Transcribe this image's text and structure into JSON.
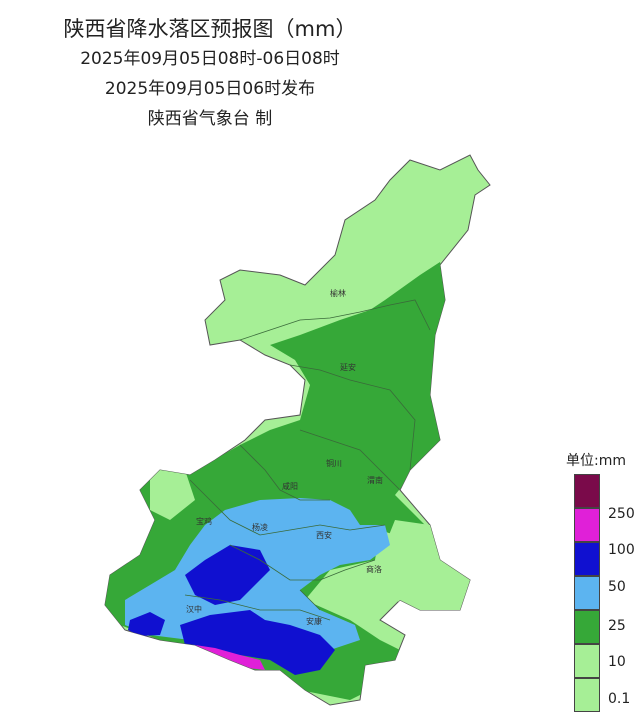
{
  "title": "陕西省降水落区预报图（mm）",
  "period": "2025年09月05日08时-06日08时",
  "issued": "2025年09月05日06时发布",
  "agency": "陕西省气象台 制",
  "cities": [
    {
      "name": "榆林",
      "id": "yulin"
    },
    {
      "name": "延安",
      "id": "yanan"
    },
    {
      "name": "铜川",
      "id": "tongchuan"
    },
    {
      "name": "渭南",
      "id": "weinan"
    },
    {
      "name": "咸阳",
      "id": "xianyang"
    },
    {
      "name": "宝鸡",
      "id": "baoji"
    },
    {
      "name": "杨凌",
      "id": "yangling"
    },
    {
      "name": "西安",
      "id": "xian"
    },
    {
      "name": "商洛",
      "id": "shangluo"
    },
    {
      "name": "汉中",
      "id": "hanzhong"
    },
    {
      "name": "安康",
      "id": "ankang"
    }
  ],
  "legend": {
    "title": "单位:mm",
    "levels": [
      {
        "label": "",
        "color": "#7a0a4a"
      },
      {
        "label": "250",
        "color": "#e020d8"
      },
      {
        "label": "100",
        "color": "#1010d0"
      },
      {
        "label": "50",
        "color": "#5cb4f0"
      },
      {
        "label": "25",
        "color": "#36a838"
      },
      {
        "label": "10",
        "color": "#a6ef96"
      },
      {
        "label": "0.1",
        "color": "#a6ef96"
      }
    ],
    "colors": {
      "rain_0_1_10": "#a6ef96",
      "rain_10_25": "#36a838",
      "rain_25_50": "#5cb4f0",
      "rain_50_100": "#1010d0",
      "rain_100_250": "#e020d8",
      "rain_250_plus": "#7a0a4a"
    }
  }
}
